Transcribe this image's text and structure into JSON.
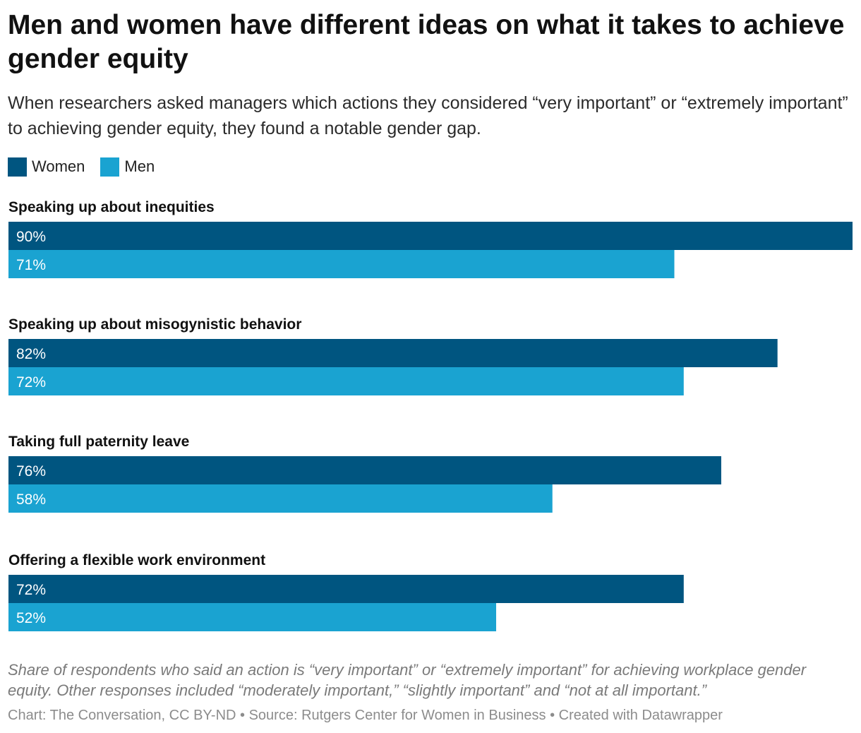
{
  "title": "Men and women have different ideas on what it takes to achieve gender equity",
  "subtitle": "When researchers asked managers which actions they considered “very important” or “extremely important” to achieving gender equity, they found a notable gender gap.",
  "notes": "Share of respondents who said an action is “very important” or “extremely important” for achieving workplace gender equity. Other responses included “moderately important,” “slightly important” and “not at all important.”",
  "footer": "Chart: The Conversation, CC BY-ND • Source: Rutgers Center for Women in Business • Created with Datawrapper",
  "legend": [
    {
      "name": "Women",
      "color": "#005580"
    },
    {
      "name": "Men",
      "color": "#1aa3d1"
    }
  ],
  "chart_data": {
    "type": "bar",
    "orientation": "horizontal",
    "categories": [
      "Speaking up about inequities",
      "Speaking up about misogynistic behavior",
      "Taking full paternity leave",
      "Offering a flexible work environment"
    ],
    "series": [
      {
        "name": "Women",
        "color": "#005580",
        "values": [
          90,
          82,
          76,
          72
        ]
      },
      {
        "name": "Men",
        "color": "#1aa3d1",
        "values": [
          71,
          72,
          58,
          52
        ]
      }
    ],
    "value_suffix": "%",
    "xlim": [
      0,
      90
    ],
    "legend_position": "top-left",
    "grid": false
  }
}
